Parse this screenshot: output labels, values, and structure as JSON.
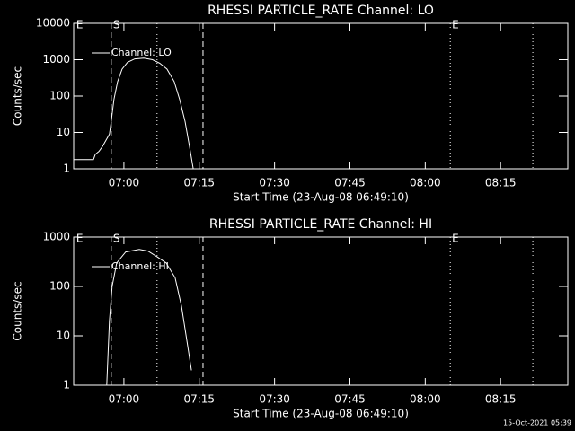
{
  "chart_data": [
    {
      "type": "line",
      "title": "RHESSI PARTICLE_RATE Channel: LO",
      "xlabel": "Start Time (23-Aug-08 06:49:10)",
      "ylabel": "Counts/sec",
      "log_y": true,
      "legend": "upper left",
      "color": "#ffffff",
      "xlim": [
        6.8333,
        8.473
      ],
      "xticks": [
        {
          "value": 7,
          "label": "07:00"
        },
        {
          "value": 7.25,
          "label": "07:15"
        },
        {
          "value": 7.5,
          "label": "07:30"
        },
        {
          "value": 7.75,
          "label": "07:45"
        },
        {
          "value": 8,
          "label": "08:00"
        },
        {
          "value": 8.25,
          "label": "08:15"
        }
      ],
      "ylim": [
        1,
        10000
      ],
      "yticks": [
        1,
        10,
        100,
        1000,
        10000
      ],
      "vlines": [
        {
          "x": 6.836,
          "style": "none",
          "label": "E"
        },
        {
          "x": 6.958,
          "style": "dashed",
          "label": "S"
        },
        {
          "x": 7.11,
          "style": "dotted"
        },
        {
          "x": 7.2625,
          "style": "dashed"
        },
        {
          "x": 8.083,
          "style": "dotted",
          "label": "E"
        },
        {
          "x": 8.357,
          "style": "dotted"
        }
      ],
      "series": [
        {
          "name": "Channel: LO",
          "color": "#ffffff",
          "x": [
            6.833,
            6.899,
            6.905,
            6.917,
            6.928,
            6.94,
            6.952,
            6.958,
            6.967,
            6.979,
            6.994,
            7.012,
            7.036,
            7.066,
            7.095,
            7.119,
            7.143,
            7.167,
            7.185,
            7.203,
            7.218,
            7.23
          ],
          "values": [
            1.8,
            1.8,
            2.5,
            3,
            4,
            6,
            9,
            20,
            80,
            250,
            550,
            850,
            1050,
            1100,
            1000,
            800,
            550,
            250,
            80,
            20,
            4,
            1
          ]
        }
      ]
    },
    {
      "type": "line",
      "title": "RHESSI PARTICLE_RATE Channel: HI",
      "xlabel": "Start Time (23-Aug-08 06:49:10)",
      "ylabel": "Counts/sec",
      "log_y": true,
      "legend": "upper left",
      "color": "#ffffff",
      "xlim": [
        6.8333,
        8.473
      ],
      "xticks": [
        {
          "value": 7,
          "label": "07:00"
        },
        {
          "value": 7.25,
          "label": "07:15"
        },
        {
          "value": 7.5,
          "label": "07:30"
        },
        {
          "value": 7.75,
          "label": "07:45"
        },
        {
          "value": 8,
          "label": "08:00"
        },
        {
          "value": 8.25,
          "label": "08:15"
        }
      ],
      "ylim": [
        1,
        1000
      ],
      "yticks": [
        1,
        10,
        100,
        1000
      ],
      "vlines": [
        {
          "x": 6.836,
          "style": "none",
          "label": "E"
        },
        {
          "x": 6.958,
          "style": "dashed",
          "label": "S"
        },
        {
          "x": 7.11,
          "style": "dotted"
        },
        {
          "x": 7.2625,
          "style": "dashed"
        },
        {
          "x": 8.083,
          "style": "dotted",
          "label": "E"
        },
        {
          "x": 8.357,
          "style": "dotted"
        }
      ],
      "series": [
        {
          "name": "Channel: HI",
          "color": "#ffffff",
          "x": [
            6.943,
            6.952,
            6.961,
            6.976,
            7.006,
            7.051,
            7.08,
            7.11,
            7.14,
            7.17,
            7.191,
            7.209,
            7.224
          ],
          "values": [
            1,
            20,
            100,
            300,
            500,
            560,
            520,
            400,
            300,
            150,
            40,
            8,
            2
          ]
        }
      ]
    }
  ],
  "footer": "15-Oct-2021 05:39"
}
